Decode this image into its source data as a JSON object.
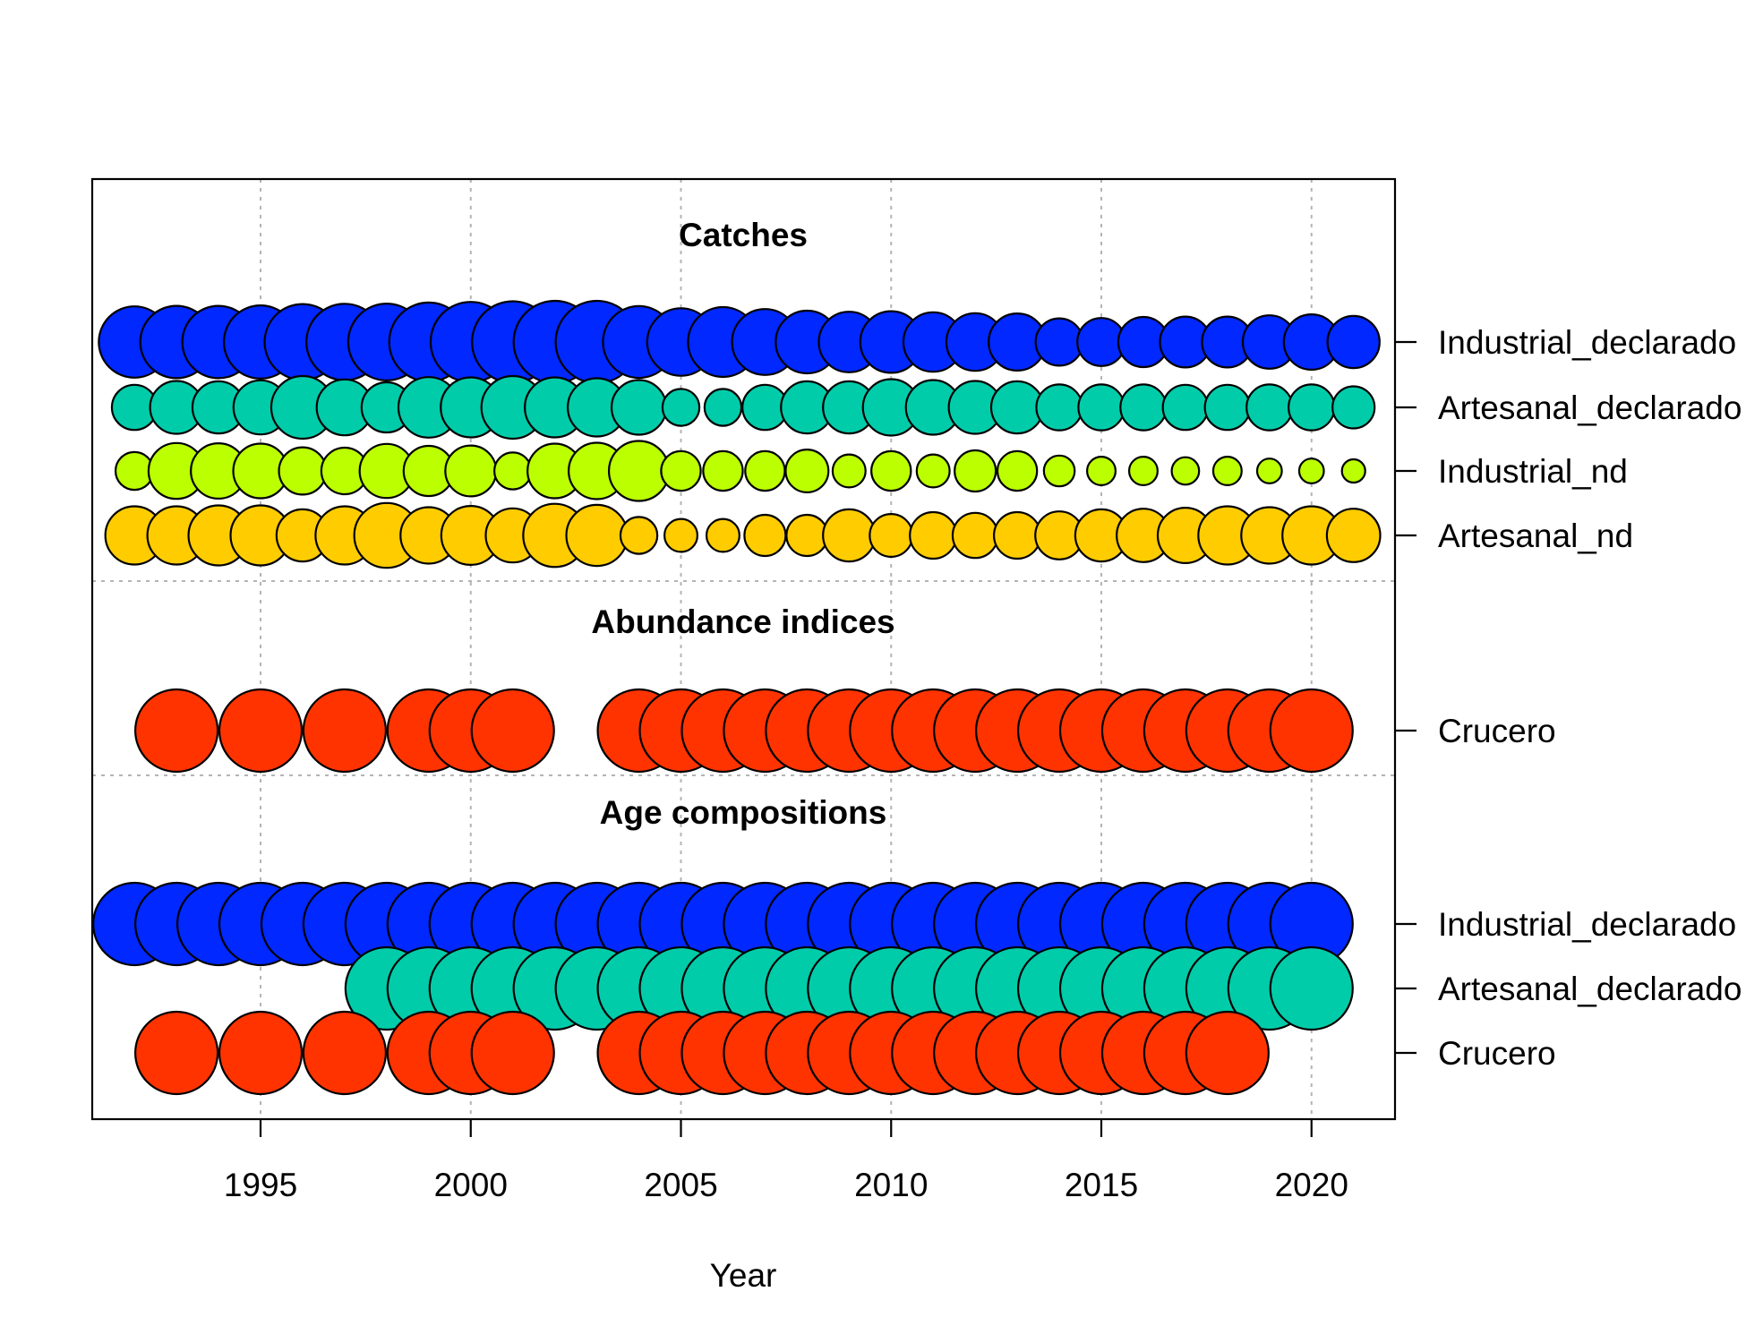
{
  "chart_data": {
    "type": "scatter",
    "subtype": "bubble",
    "xlabel": "Year",
    "ylabel": "",
    "x_ticks": [
      1995,
      2000,
      2005,
      2010,
      2015,
      2020
    ],
    "xlim": [
      1991,
      2022
    ],
    "grid": true,
    "legend": "none",
    "years": [
      1992,
      1993,
      1994,
      1995,
      1996,
      1997,
      1998,
      1999,
      2000,
      2001,
      2002,
      2003,
      2004,
      2005,
      2006,
      2007,
      2008,
      2009,
      2010,
      2011,
      2012,
      2013,
      2014,
      2015,
      2016,
      2017,
      2018,
      2019,
      2020,
      2021
    ],
    "groups": [
      {
        "title": "Catches",
        "rows": [
          {
            "label": "Industrial_declarado",
            "color": "#0028FF",
            "values": [
              0.75,
              0.77,
              0.77,
              0.79,
              0.85,
              0.86,
              0.87,
              0.92,
              0.95,
              0.98,
              1.0,
              1.0,
              0.76,
              0.67,
              0.72,
              0.64,
              0.58,
              0.54,
              0.56,
              0.52,
              0.49,
              0.48,
              0.33,
              0.34,
              0.37,
              0.38,
              0.38,
              0.42,
              0.45,
              0.4
            ]
          },
          {
            "label": "Artesanal_declarado",
            "color": "#00CCAA",
            "values": [
              0.3,
              0.41,
              0.4,
              0.43,
              0.58,
              0.46,
              0.37,
              0.54,
              0.53,
              0.58,
              0.53,
              0.5,
              0.44,
              0.2,
              0.2,
              0.3,
              0.4,
              0.4,
              0.47,
              0.44,
              0.41,
              0.4,
              0.31,
              0.31,
              0.31,
              0.3,
              0.3,
              0.31,
              0.31,
              0.26
            ]
          },
          {
            "label": "Industrial_nd",
            "color": "#BBFF00",
            "values": [
              0.21,
              0.46,
              0.45,
              0.44,
              0.33,
              0.32,
              0.43,
              0.37,
              0.38,
              0.2,
              0.44,
              0.47,
              0.53,
              0.23,
              0.23,
              0.23,
              0.27,
              0.16,
              0.23,
              0.16,
              0.25,
              0.23,
              0.14,
              0.12,
              0.12,
              0.11,
              0.12,
              0.09,
              0.09,
              0.08
            ]
          },
          {
            "label": "Artesanal_nd",
            "color": "#FFCC00",
            "values": [
              0.5,
              0.5,
              0.53,
              0.53,
              0.4,
              0.5,
              0.62,
              0.47,
              0.51,
              0.43,
              0.59,
              0.55,
              0.2,
              0.16,
              0.16,
              0.25,
              0.25,
              0.4,
              0.27,
              0.32,
              0.3,
              0.32,
              0.34,
              0.4,
              0.42,
              0.45,
              0.5,
              0.47,
              0.5,
              0.42
            ]
          }
        ]
      },
      {
        "title": "Abundance indices",
        "rows": [
          {
            "label": "Crucero",
            "color": "#FF3300",
            "values": [
              null,
              1,
              null,
              1,
              null,
              1,
              null,
              1,
              1,
              1,
              null,
              null,
              1,
              1,
              1,
              1,
              1,
              1,
              1,
              1,
              1,
              1,
              1,
              1,
              1,
              1,
              1,
              1,
              1,
              null
            ]
          }
        ]
      },
      {
        "title": "Age compositions",
        "rows": [
          {
            "label": "Industrial_declarado",
            "color": "#0028FF",
            "values": [
              1,
              1,
              1,
              1,
              1,
              1,
              1,
              1,
              1,
              1,
              1,
              1,
              1,
              1,
              1,
              1,
              1,
              1,
              1,
              1,
              1,
              1,
              1,
              1,
              1,
              1,
              1,
              1,
              1,
              null
            ]
          },
          {
            "label": "Artesanal_declarado",
            "color": "#00CCAA",
            "values": [
              null,
              null,
              null,
              null,
              null,
              null,
              1,
              1,
              1,
              1,
              1,
              1,
              1,
              1,
              1,
              1,
              1,
              1,
              1,
              1,
              1,
              1,
              1,
              1,
              1,
              1,
              1,
              1,
              1,
              null
            ]
          },
          {
            "label": "Crucero",
            "color": "#FF3300",
            "values": [
              null,
              1,
              null,
              1,
              null,
              1,
              null,
              1,
              1,
              1,
              null,
              null,
              1,
              1,
              1,
              1,
              1,
              1,
              1,
              1,
              1,
              1,
              1,
              1,
              1,
              1,
              1,
              null,
              null,
              null
            ]
          }
        ]
      }
    ]
  }
}
